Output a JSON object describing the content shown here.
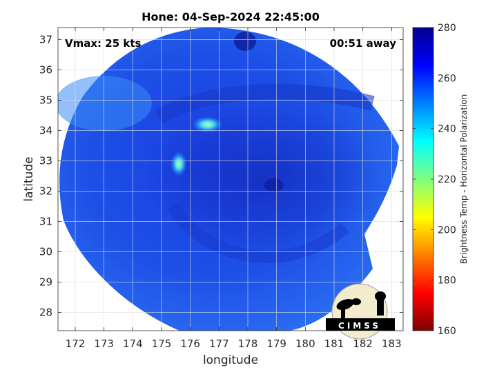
{
  "title": "Hone: 04-Sep-2024 22:45:00",
  "annotations": {
    "vmax": "Vmax: 25 kts",
    "time_away": "00:51 away"
  },
  "axes": {
    "xlabel": "longitude",
    "ylabel": "latitude",
    "xlim": [
      171.4,
      183.4
    ],
    "ylim": [
      27.4,
      37.4
    ],
    "xticks": [
      172,
      173,
      174,
      175,
      176,
      177,
      178,
      179,
      180,
      181,
      182,
      183
    ],
    "yticks": [
      28,
      29,
      30,
      31,
      32,
      33,
      34,
      35,
      36,
      37
    ],
    "grid": true
  },
  "colorbar": {
    "label": "Brightness Temp - Horizontal Polarization",
    "range": [
      160,
      280
    ],
    "ticks": [
      160,
      180,
      200,
      220,
      240,
      260,
      280
    ],
    "colormap": [
      "#7f0000",
      "#ff0000",
      "#ff8000",
      "#ffff00",
      "#80ff80",
      "#00ffff",
      "#0080ff",
      "#0000ff",
      "#00008f"
    ]
  },
  "logo": {
    "text": "CIMSS"
  },
  "map_data": {
    "type": "satellite-swath",
    "center_lon": 177.5,
    "center_lat": 32.4,
    "cold_spots": [
      {
        "lon": 176.6,
        "lat": 34.2,
        "value": 235
      },
      {
        "lon": 175.6,
        "lat": 32.9,
        "value": 240
      }
    ],
    "eye": {
      "lon": 178.9,
      "lat": 32.2
    }
  }
}
